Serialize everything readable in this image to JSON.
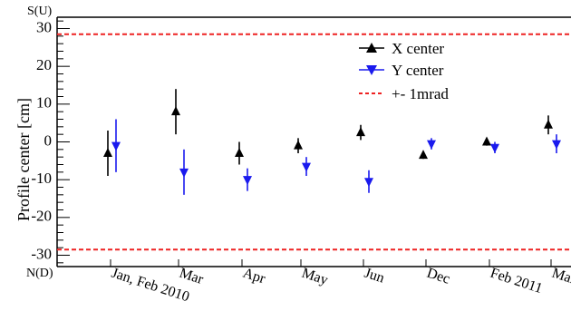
{
  "chart_data": {
    "type": "scatter",
    "title": "",
    "xlabel": "",
    "ylabel": "Profile center [cm]",
    "ylim": [
      -33,
      33
    ],
    "yticks": [
      -30,
      -20,
      -10,
      0,
      10,
      20,
      30
    ],
    "top_label": "S(U)",
    "bottom_label": "N(D)",
    "categories": [
      "Jan, Feb 2010",
      "Mar",
      "Apr",
      "May",
      "Jun",
      "Dec",
      "Feb 2011",
      "Mar"
    ],
    "series": [
      {
        "name": "X center",
        "color": "#000000",
        "marker": "triangle-up",
        "values": [
          -3,
          8,
          -3,
          -1,
          2.5,
          -3.5,
          0,
          4.5
        ],
        "errors": [
          6,
          6,
          3,
          2,
          2,
          1,
          1,
          2.5
        ]
      },
      {
        "name": "Y center",
        "color": "#1a1aee",
        "marker": "triangle-down",
        "values": [
          -1,
          -8,
          -10,
          -6.5,
          -10.5,
          -0.5,
          -1.5,
          -0.5
        ],
        "errors": [
          7,
          6,
          3,
          2.5,
          3,
          1.5,
          1.5,
          2.5
        ]
      }
    ],
    "reference_lines": {
      "name": "+- 1mrad",
      "color": "#ee2222",
      "style": "dashed",
      "values": [
        28.5,
        -28.5
      ]
    },
    "legend_position": "top-right",
    "grid": false
  }
}
